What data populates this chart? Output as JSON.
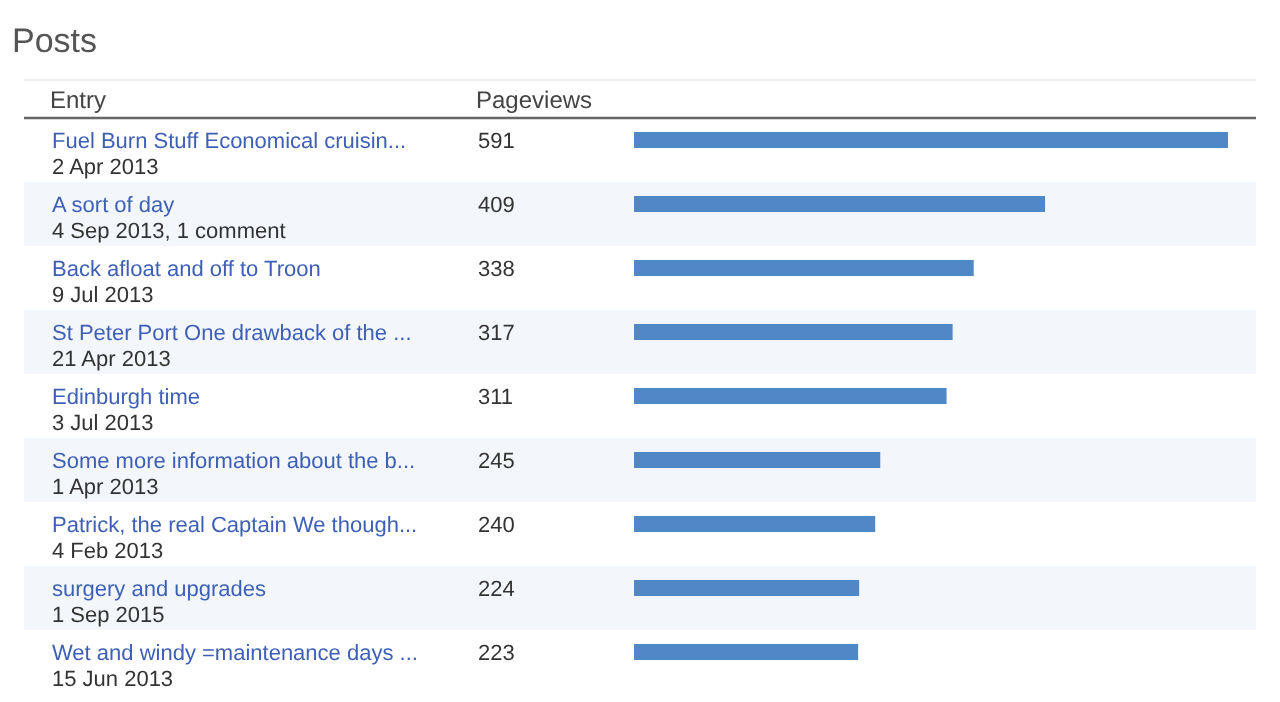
{
  "chart_data": {
    "type": "bar",
    "orientation": "horizontal",
    "title": "Posts",
    "ylabel": "Entry",
    "xlabel": "Pageviews",
    "categories": [
      "Fuel Burn Stuff Economical cruisin...\n2 Apr 2013",
      "A sort of day\n4 Sep 2013, 1 comment",
      "Back afloat and off to Troon\n9 Jul 2013",
      "St Peter Port One drawback of the ...\n21 Apr 2013",
      "Edinburgh time\n3 Jul 2013",
      "Some more information about the b...\n1 Apr 2013",
      "Patrick, the real Captain We though...\n4 Feb 2013",
      "surgery and upgrades\n1 Sep 2015",
      "Wet and windy =maintenance days ...\n15 Jun 2013"
    ],
    "values": [
      591,
      409,
      338,
      317,
      311,
      245,
      240,
      224,
      223
    ],
    "color": "#5087c7",
    "xlim": [
      0,
      591
    ],
    "data_labels": true
  }
}
